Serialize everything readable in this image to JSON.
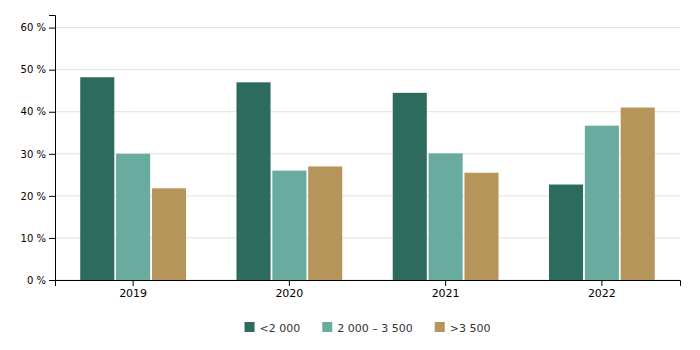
{
  "chart_data": {
    "type": "bar",
    "categories": [
      "2019",
      "2020",
      "2021",
      "2022"
    ],
    "series": [
      {
        "name": "<2 000",
        "color": "#2d6b5e",
        "values": [
          48.2,
          47.0,
          44.5,
          22.7
        ]
      },
      {
        "name": "2 000 – 3 500",
        "color": "#6aaba0",
        "values": [
          30.0,
          26.0,
          30.1,
          36.7
        ]
      },
      {
        "name": ">3 500",
        "color": "#b5955a",
        "values": [
          21.8,
          27.0,
          25.5,
          41.0
        ]
      }
    ],
    "ylim": [
      0,
      63
    ],
    "yticks": [
      {
        "value": 0,
        "label": "0 %"
      },
      {
        "value": 10,
        "label": "10 %"
      },
      {
        "value": 20,
        "label": "20 %"
      },
      {
        "value": 30,
        "label": "30 %"
      },
      {
        "value": 40,
        "label": "40 %"
      },
      {
        "value": 50,
        "label": "50 %"
      },
      {
        "value": 60,
        "label": "60 %"
      }
    ],
    "grid": true,
    "legend": "bottom"
  }
}
